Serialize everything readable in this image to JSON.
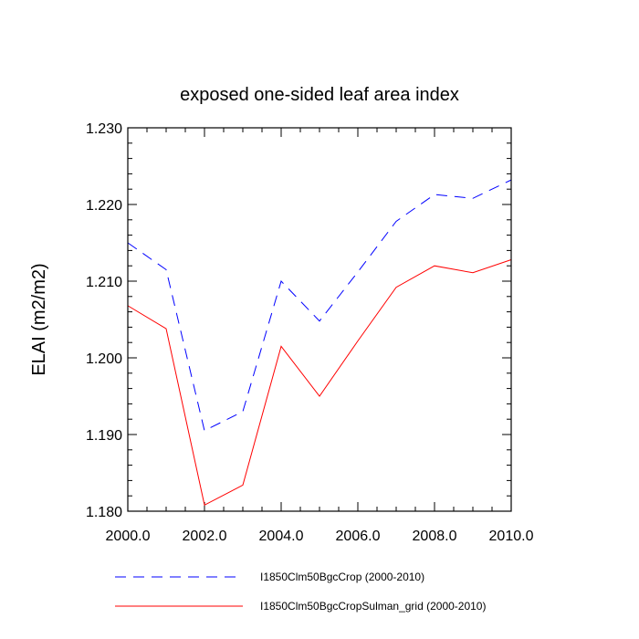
{
  "chart_data": {
    "type": "line",
    "title": "exposed one-sided leaf area index",
    "xlabel": "",
    "ylabel": "ELAI  (m2/m2)",
    "xlim": [
      2000,
      2010
    ],
    "ylim": [
      1.18,
      1.23
    ],
    "x_ticks": [
      "2000.0",
      "2002.0",
      "2004.0",
      "2006.0",
      "2008.0",
      "2010.0"
    ],
    "y_ticks": [
      "1.180",
      "1.190",
      "1.200",
      "1.210",
      "1.220",
      "1.230"
    ],
    "grid": false,
    "legend_position": "bottom",
    "x": [
      2000,
      2001,
      2002,
      2003,
      2004,
      2005,
      2006,
      2007,
      2008,
      2009,
      2010
    ],
    "series": [
      {
        "name": "I1850Clm50BgcCrop (2000-2010)",
        "color": "#0000ff",
        "dash": "dashed",
        "values": [
          1.215,
          1.2115,
          1.1905,
          1.193,
          1.21,
          1.2048,
          1.2112,
          1.2178,
          1.2213,
          1.2208,
          1.2232
        ]
      },
      {
        "name": "I1850Clm50BgcCropSulman_grid (2000-2010)",
        "color": "#ff0000",
        "dash": "solid",
        "values": [
          1.2068,
          1.2038,
          1.1808,
          1.1834,
          1.2015,
          1.195,
          1.2022,
          1.2092,
          1.212,
          1.2111,
          1.2128
        ]
      }
    ]
  }
}
